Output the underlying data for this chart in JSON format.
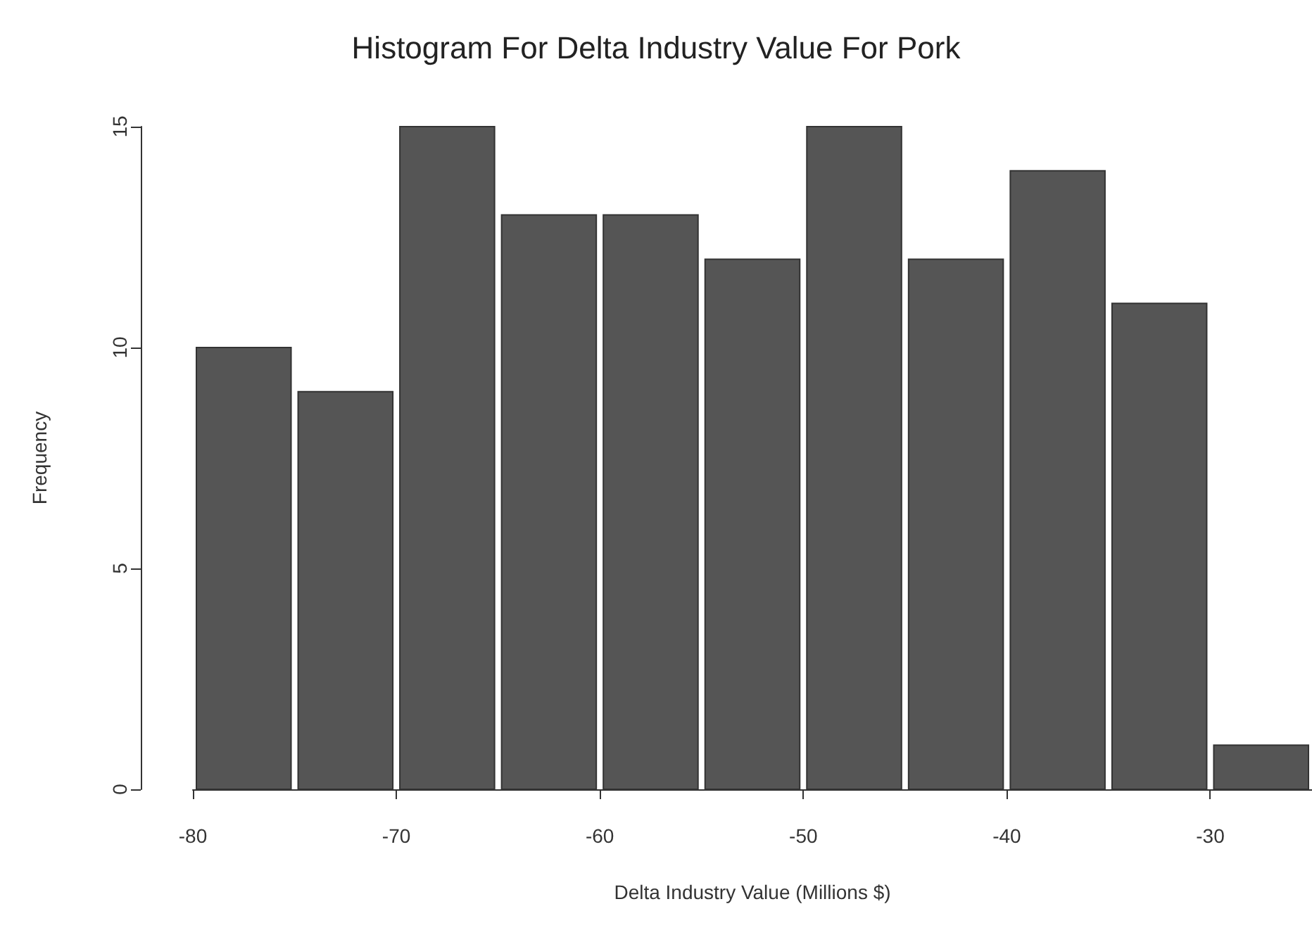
{
  "chart_data": {
    "type": "histogram",
    "title": "Histogram For Delta Industry Value For Pork",
    "xlabel": "Delta Industry Value (Millions $)",
    "ylabel": "Frequency",
    "bins": [
      -80,
      -75,
      -70,
      -65,
      -60,
      -55,
      -50,
      -45,
      -40,
      -35,
      -30,
      -25
    ],
    "values": [
      10,
      9,
      15,
      13,
      13,
      12,
      15,
      12,
      14,
      11,
      1
    ],
    "color": "#555555",
    "xlim": [
      -80,
      -25
    ],
    "xticks": [
      -80,
      -70,
      -60,
      -50,
      -40,
      -30
    ],
    "ylim": [
      0,
      15
    ],
    "yticks": [
      0,
      5,
      10,
      15
    ],
    "grid": false
  }
}
